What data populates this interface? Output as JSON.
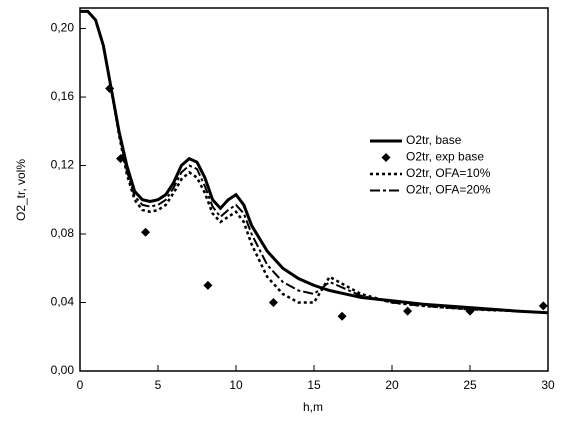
{
  "chart_data": {
    "type": "line",
    "x_label": "h,m",
    "y_label": "O2_tr, vol%",
    "xlim": [
      0,
      30
    ],
    "ylim": [
      0,
      0.212
    ],
    "xticks": [
      0,
      5,
      10,
      15,
      20,
      25,
      30
    ],
    "yticks": [
      {
        "value": 0,
        "label": "0,00"
      },
      {
        "value": 0.04,
        "label": "0,04"
      },
      {
        "value": 0.08,
        "label": "0,08"
      },
      {
        "value": 0.12,
        "label": "0,12"
      },
      {
        "value": 0.16,
        "label": "0,16"
      },
      {
        "value": 0.2,
        "label": "0,20"
      }
    ],
    "legend": "upper-right",
    "x": [
      0,
      0.5,
      1,
      1.5,
      2,
      2.5,
      3,
      3.5,
      4,
      4.5,
      5,
      5.5,
      6,
      6.5,
      7,
      7.5,
      8,
      8.5,
      9,
      9.5,
      10,
      10.5,
      11,
      12,
      13,
      14,
      15,
      16,
      17,
      18,
      20,
      22,
      25,
      28,
      30
    ],
    "series": [
      {
        "name": "O2tr, base",
        "color": "#000000",
        "linestyle": "solid",
        "linewidth": 3,
        "values": [
          0.21,
          0.21,
          0.205,
          0.19,
          0.165,
          0.14,
          0.12,
          0.105,
          0.1,
          0.099,
          0.1,
          0.103,
          0.11,
          0.12,
          0.124,
          0.122,
          0.113,
          0.1,
          0.095,
          0.1,
          0.103,
          0.097,
          0.085,
          0.07,
          0.06,
          0.054,
          0.05,
          0.047,
          0.045,
          0.043,
          0.041,
          0.039,
          0.037,
          0.035,
          0.034
        ]
      },
      {
        "name": "O2tr, exp base",
        "color": "#000000",
        "linestyle": "none",
        "marker": "diamond",
        "x": [
          1.9,
          2.6,
          4.2,
          8.2,
          12.4,
          16.8,
          21,
          25,
          29.7
        ],
        "values": [
          0.165,
          0.124,
          0.081,
          0.05,
          0.04,
          0.032,
          0.035,
          0.035,
          0.038
        ]
      },
      {
        "name": "O2tr, OFA=10%",
        "color": "#000000",
        "linestyle": "dotted",
        "linewidth": 2.5,
        "values": [
          0.21,
          0.21,
          0.205,
          0.19,
          0.165,
          0.138,
          0.115,
          0.1,
          0.094,
          0.093,
          0.094,
          0.097,
          0.104,
          0.112,
          0.116,
          0.113,
          0.104,
          0.092,
          0.087,
          0.09,
          0.093,
          0.087,
          0.074,
          0.055,
          0.045,
          0.04,
          0.04,
          0.055,
          0.05,
          0.045,
          0.04,
          0.038,
          0.036,
          0.035,
          0.034
        ]
      },
      {
        "name": "O2tr, OFA=20%",
        "color": "#000000",
        "linestyle": "dashdot",
        "linewidth": 2,
        "values": [
          0.21,
          0.21,
          0.205,
          0.19,
          0.165,
          0.139,
          0.117,
          0.102,
          0.097,
          0.096,
          0.097,
          0.1,
          0.107,
          0.116,
          0.12,
          0.118,
          0.108,
          0.096,
          0.09,
          0.094,
          0.097,
          0.092,
          0.08,
          0.062,
          0.052,
          0.047,
          0.045,
          0.052,
          0.048,
          0.044,
          0.04,
          0.038,
          0.036,
          0.035,
          0.034
        ]
      }
    ]
  }
}
